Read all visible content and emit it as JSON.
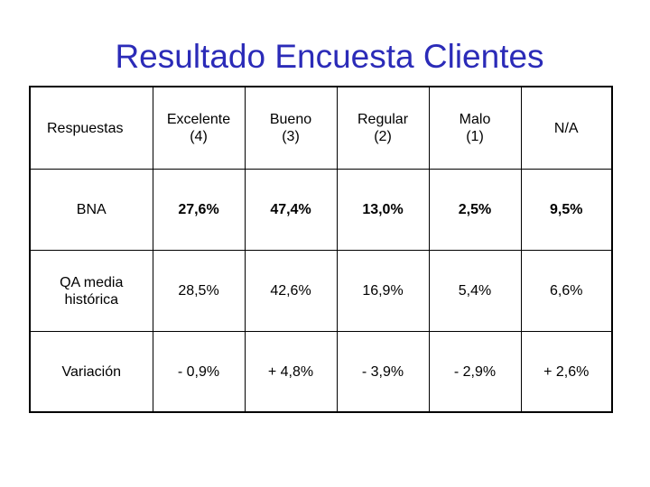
{
  "title": "Resultado Encuesta Clientes",
  "table": {
    "header": {
      "label": "Respuestas",
      "columns": [
        {
          "line1": "Excelente",
          "line2": "(4)"
        },
        {
          "line1": "Bueno",
          "line2": "(3)"
        },
        {
          "line1": "Regular",
          "line2": "(2)"
        },
        {
          "line1": "Malo",
          "line2": "(1)"
        },
        {
          "line1": "N/A",
          "line2": ""
        }
      ]
    },
    "rows": [
      {
        "label_line1": "BNA",
        "label_line2": "",
        "values": [
          "27,6%",
          "47,4%",
          "13,0%",
          "2,5%",
          "9,5%"
        ]
      },
      {
        "label_line1": "QA media",
        "label_line2": "histórica",
        "values": [
          "28,5%",
          "42,6%",
          "16,9%",
          "5,4%",
          "6,6%"
        ]
      },
      {
        "label_line1": "Variación",
        "label_line2": "",
        "values": [
          "- 0,9%",
          "+ 4,8%",
          "- 3,9%",
          "- 2,9%",
          "+ 2,6%"
        ]
      }
    ]
  },
  "colors": {
    "title": "#2b2bb8",
    "text": "#000000",
    "border": "#000000",
    "background": "#ffffff"
  }
}
